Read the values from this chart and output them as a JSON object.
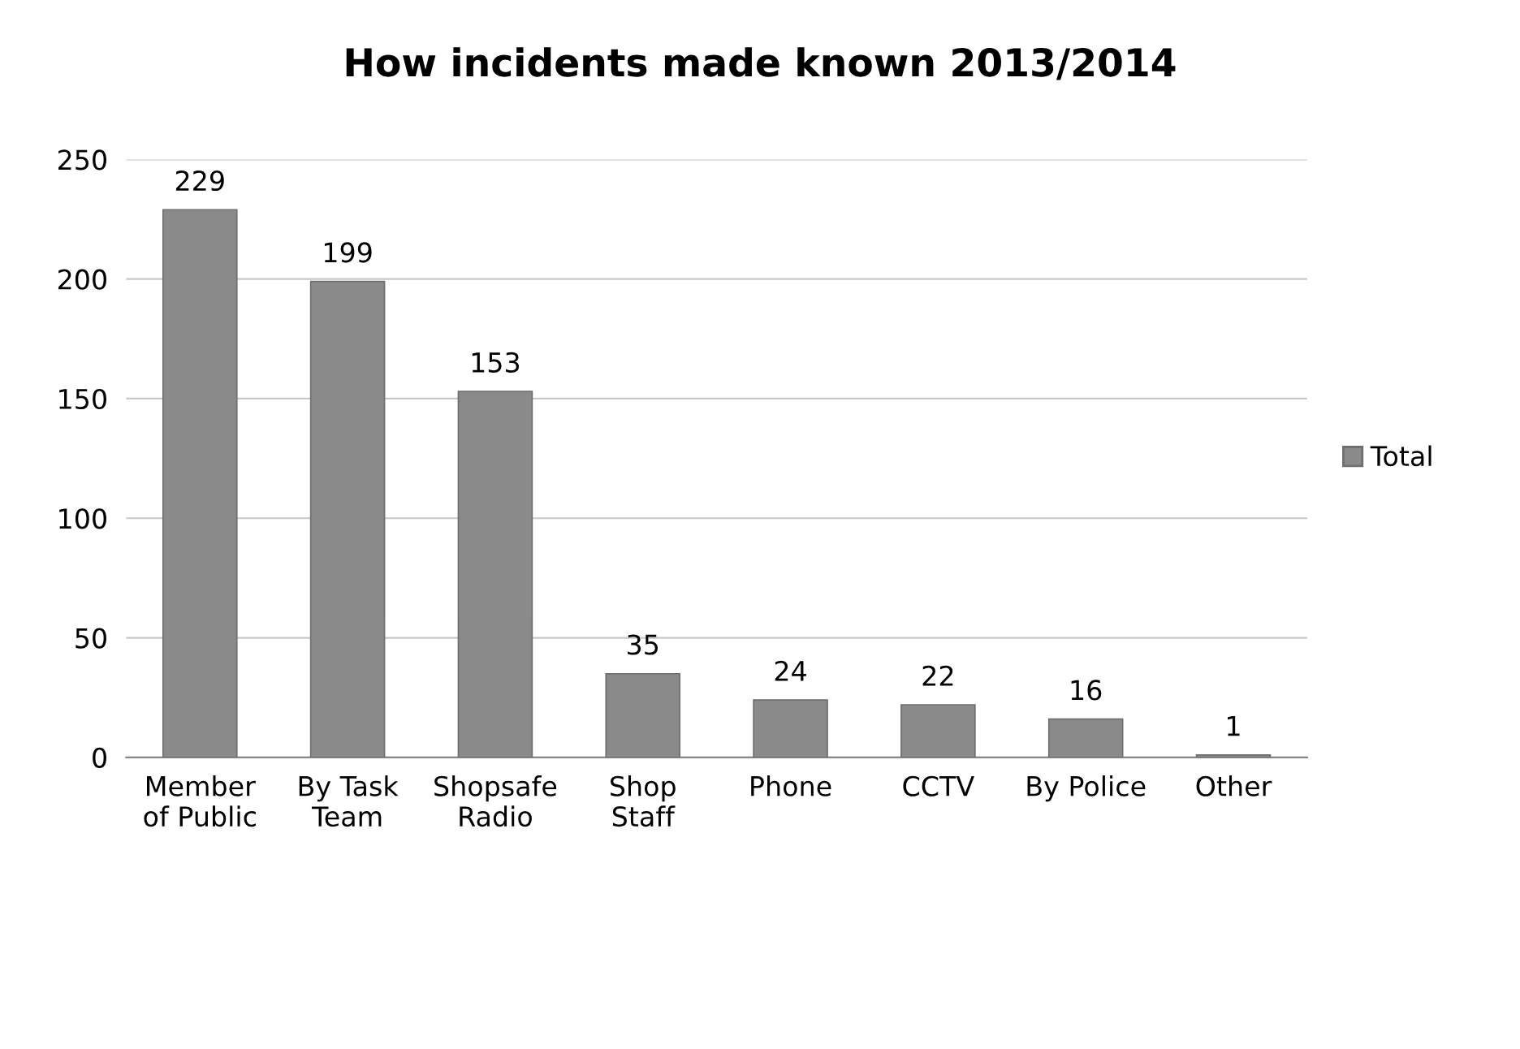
{
  "chart_data": {
    "type": "bar",
    "title": "How incidents made known 2013/2014",
    "categories": [
      "Member\nof Public",
      "By Task\nTeam",
      "Shopsafe\nRadio",
      "Shop\nStaff",
      "Phone",
      "CCTV",
      "By Police",
      "Other"
    ],
    "series": [
      {
        "name": "Total",
        "color": "#8a8a8a",
        "values": [
          229,
          199,
          153,
          35,
          24,
          22,
          16,
          1
        ]
      }
    ],
    "ylim": [
      0,
      250
    ],
    "yticks": [
      0,
      50,
      100,
      150,
      200,
      250
    ],
    "grid": "y",
    "legend": "right",
    "data_labels": true
  }
}
